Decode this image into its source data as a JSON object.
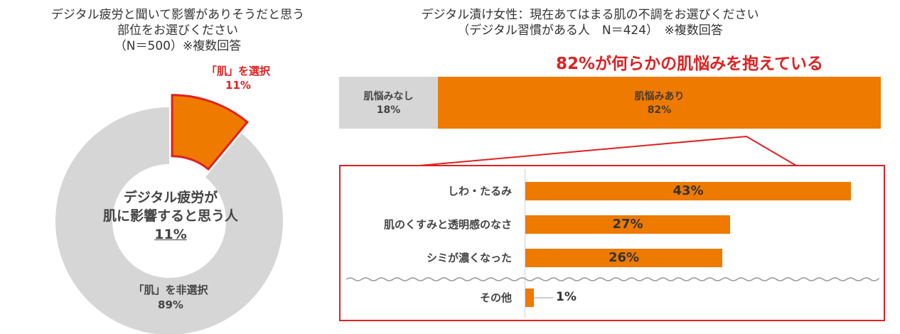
{
  "left_chart": {
    "title_line1": "デジタル疲労と聞いて影響がありそうだと思う",
    "title_line2": "部位をお選びください",
    "title_line3": "（N＝500）※複数回答",
    "selected_label": "「肌」を選択",
    "selected_pct": "11%",
    "center_line1": "デジタル疲労が",
    "center_line2": "肌に影響すると思う人",
    "center_pct": "11%",
    "nonselected_label": "「肌」を非選択",
    "nonselected_pct": "89%"
  },
  "right_chart": {
    "title_line1": "デジタル漬け女性：現在あてはまる肌の不調をお選びください",
    "title_line2": "（デジタル習慣がある人　N＝424）　※複数回答",
    "headline": "82%が何らかの肌悩みを抱えている",
    "stack": {
      "none_label": "肌悩みなし",
      "none_pct": "18%",
      "yes_label": "肌悩みあり",
      "yes_pct": "82%"
    },
    "rows": [
      {
        "label": "しわ・たるみ",
        "pct": "43%"
      },
      {
        "label": "肌のくすみと透明感のなさ",
        "pct": "27%"
      },
      {
        "label": "シミが濃くなった",
        "pct": "26%"
      },
      {
        "label": "その他",
        "pct": "1%"
      }
    ]
  },
  "chart_data": [
    {
      "type": "pie",
      "title": "デジタル疲労と聞いて影響がありそうだと思う部位をお選びください（N＝500）※複数回答",
      "categories": [
        "「肌」を選択",
        "「肌」を非選択"
      ],
      "values": [
        11,
        89
      ],
      "colors": [
        "#ee7a00",
        "#d6d6d6"
      ]
    },
    {
      "type": "bar",
      "title": "デジタル漬け女性：現在あてはまる肌の不調をお選びください（デジタル習慣がある人 N＝424）※複数回答",
      "stacked": true,
      "categories": [
        "肌悩みなし",
        "肌悩みあり"
      ],
      "values": [
        18,
        82
      ],
      "colors": [
        "#d6d6d6",
        "#ee7a00"
      ]
    },
    {
      "type": "bar",
      "orientation": "horizontal",
      "categories": [
        "しわ・たるみ",
        "肌のくすみと透明感のなさ",
        "シミが濃くなった",
        "その他"
      ],
      "values": [
        43,
        27,
        26,
        1
      ],
      "xlim": [
        0,
        45
      ],
      "color": "#ee7a00"
    }
  ]
}
